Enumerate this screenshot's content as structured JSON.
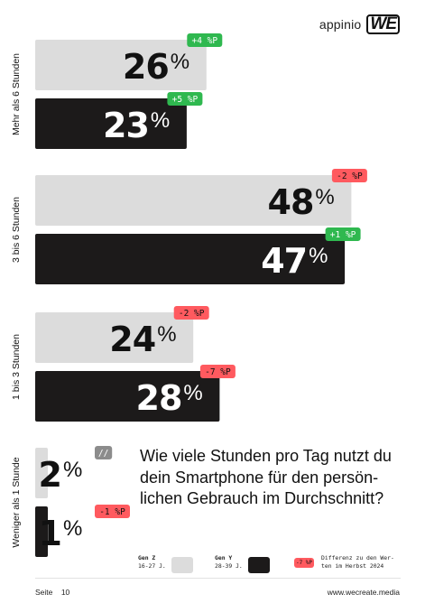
{
  "brand": {
    "name": "appinio",
    "mark": "WE"
  },
  "question": "Wie viele Stunden pro Tag nutzt du dein Smartphone für den persön­lichen Gebrauch im Durchschnitt?",
  "colors": {
    "gen_z": "#dcdcdc",
    "gen_y": "#1c1a1a",
    "diff_positive": "#2fb84f",
    "diff_negative": "#ff5a5f",
    "diff_neutral": "#8c8c8c"
  },
  "legend": {
    "gen_z": {
      "name": "Gen Z",
      "age": "16-27 J."
    },
    "gen_y": {
      "name": "Gen Y",
      "age": "28-39 J."
    },
    "diff": {
      "badge": "-7 %P",
      "line1": "Differenz zu den Wer-",
      "line2": "ten im Herbst 2024"
    }
  },
  "footer": {
    "page_label": "Seite",
    "page_number": "10",
    "url": "www.wecreate.media"
  },
  "chart_data": {
    "type": "bar",
    "orientation": "horizontal",
    "title": "Wie viele Stunden pro Tag nutzt du dein Smartphone für den persön­lichen Gebrauch im Durchschnitt?",
    "categories": [
      "Mehr als 6 Stunden",
      "3 bis 6 Stunden",
      "1 bis 3 Stunden",
      "Weniger als 1 Stunde"
    ],
    "unit": "%",
    "series": [
      {
        "name": "Gen Z",
        "values": [
          26,
          48,
          24,
          2
        ],
        "diffs": [
          "+4 %P",
          "-2 %P",
          "-2 %P",
          "//"
        ]
      },
      {
        "name": "Gen Y",
        "values": [
          23,
          47,
          28,
          1
        ],
        "diffs": [
          "+5 %P",
          "+1 %P",
          "-7 %P",
          "-1 %P"
        ]
      }
    ],
    "grid": false,
    "legend_position": "bottom"
  }
}
